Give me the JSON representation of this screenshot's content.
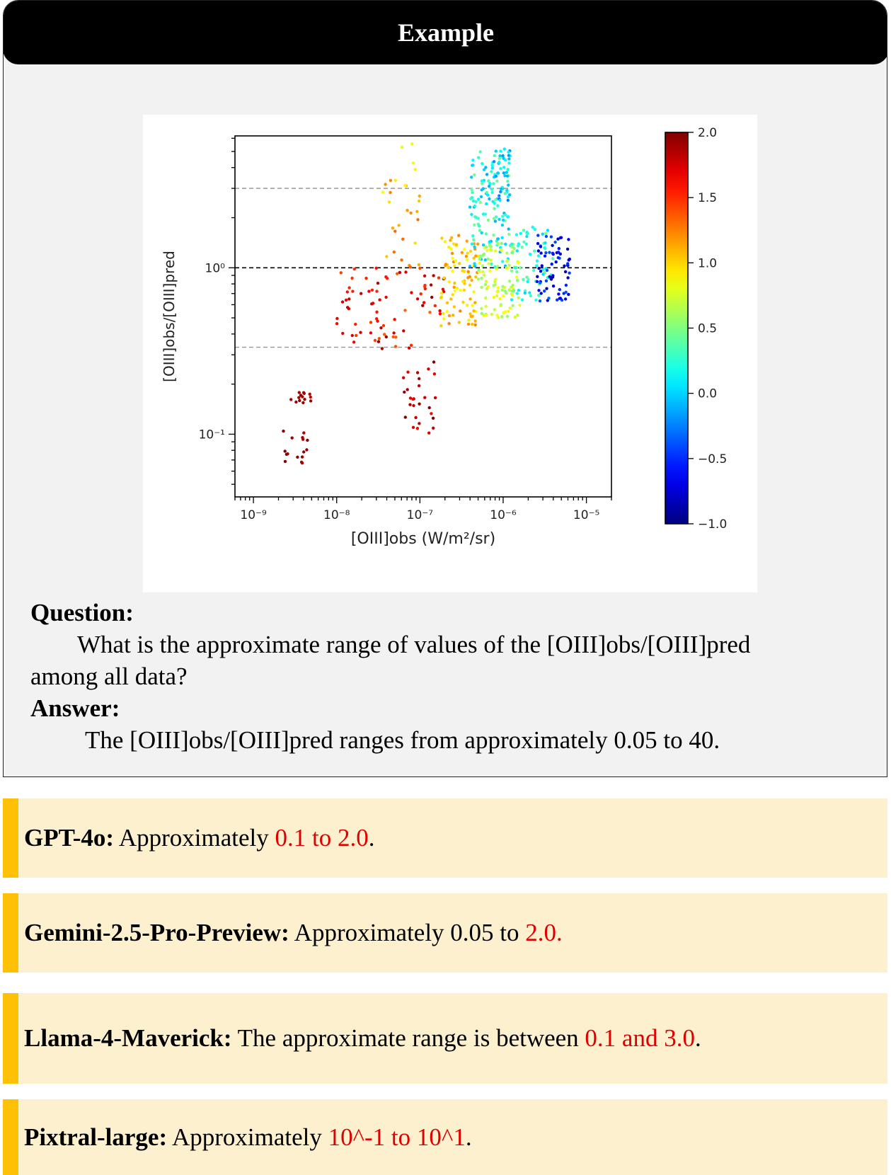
{
  "header": {
    "title": "Example"
  },
  "qa": {
    "question_label": "Question:",
    "question_line1": "What is the approximate range of values of the [OIII]obs/[OIII]pred",
    "question_line2": "among all data?",
    "answer_label": "Answer:",
    "answer_text": "The [OIII]obs/[OIII]pred ranges from approximately 0.05 to 40."
  },
  "responses": [
    {
      "model": "GPT-4o:",
      "before": " Approximately ",
      "wrong": "0.1 to 2.0",
      "after": "."
    },
    {
      "model": "Gemini-2.5-Pro-Preview:",
      "before": " Approximately 0.05 to ",
      "wrong": "2.0.",
      "after": ""
    },
    {
      "model": "Llama-4-Maverick:",
      "before": " The approximate range is between ",
      "wrong": "0.1 and 3.0",
      "after": "."
    },
    {
      "model": "Pixtral-large:",
      "before": " Approximately ",
      "wrong": "10^-1 to 10^1",
      "after": "."
    }
  ],
  "colors": {
    "accent_bar": "#ffc107",
    "response_bg": "#fdf0cf",
    "wrong_text": "#e00000",
    "panel_bg": "#f2f2f2"
  },
  "chart_data": {
    "type": "scatter",
    "xlabel": "[OIII]obs (W/m²/sr)",
    "ylabel": "[OIII]obs/[OIII]pred",
    "x_scale": "log",
    "y_scale": "log",
    "xlim": [
      6e-10,
      2e-05
    ],
    "ylim": [
      0.042,
      6.2
    ],
    "x_ticks": [
      {
        "value": 1e-09,
        "label": "10⁻⁹"
      },
      {
        "value": 1e-08,
        "label": "10⁻⁸"
      },
      {
        "value": 1e-07,
        "label": "10⁻⁷"
      },
      {
        "value": 1e-06,
        "label": "10⁻⁶"
      },
      {
        "value": 1e-05,
        "label": "10⁻⁵"
      }
    ],
    "y_ticks": [
      {
        "value": 1,
        "label": "10⁰"
      },
      {
        "value": 0.1,
        "label": "10⁻¹"
      }
    ],
    "reference_lines": [
      {
        "y": 3.0,
        "style": "dashed",
        "color": "#999999"
      },
      {
        "y": 1.0,
        "style": "dashed",
        "color": "#000000"
      },
      {
        "y": 0.333,
        "style": "dashed",
        "color": "#999999"
      }
    ],
    "colorbar": {
      "colormap": "jet",
      "range": [
        -1.0,
        2.0
      ],
      "ticks": [
        {
          "value": 2.0,
          "label": "2.0"
        },
        {
          "value": 1.5,
          "label": "1.5"
        },
        {
          "value": 1.0,
          "label": "1.0"
        },
        {
          "value": 0.5,
          "label": "0.5"
        },
        {
          "value": 0.0,
          "label": "0.0"
        },
        {
          "value": -0.5,
          "label": "−0.5"
        },
        {
          "value": -1.0,
          "label": "−1.0"
        }
      ]
    },
    "series": [
      {
        "clusters": [
          {
            "x_log": [
              -8.7,
              -8.35
            ],
            "y_log": [
              -1.22,
              -0.95
            ],
            "c": [
              1.85,
              2.0
            ],
            "n": 16
          },
          {
            "x_log": [
              -8.55,
              -8.3
            ],
            "y_log": [
              -0.82,
              -0.72
            ],
            "c": [
              1.8,
              2.0
            ],
            "n": 14
          },
          {
            "x_log": [
              -8.0,
              -7.4
            ],
            "y_log": [
              -0.45,
              0.0
            ],
            "c": [
              1.4,
              1.8
            ],
            "n": 35
          },
          {
            "x_log": [
              -7.5,
              -7.0
            ],
            "y_log": [
              0.0,
              0.55
            ],
            "c": [
              0.95,
              1.35
            ],
            "n": 18
          },
          {
            "x_log": [
              -7.5,
              -6.7
            ],
            "y_log": [
              -0.5,
              0.05
            ],
            "c": [
              1.3,
              1.95
            ],
            "n": 45
          },
          {
            "x_log": [
              -7.2,
              -6.8
            ],
            "y_log": [
              -1.0,
              -0.55
            ],
            "c": [
              1.6,
              2.0
            ],
            "n": 28
          },
          {
            "x_log": [
              -6.75,
              -6.3
            ],
            "y_log": [
              -0.35,
              0.2
            ],
            "c": [
              0.8,
              1.25
            ],
            "n": 90
          },
          {
            "x_log": [
              -6.4,
              -5.9
            ],
            "y_log": [
              0.0,
              0.7
            ],
            "c": [
              -0.1,
              0.5
            ],
            "n": 120
          },
          {
            "x_log": [
              -6.3,
              -5.8
            ],
            "y_log": [
              -0.3,
              0.15
            ],
            "c": [
              0.5,
              0.9
            ],
            "n": 100
          },
          {
            "x_log": [
              -5.9,
              -5.4
            ],
            "y_log": [
              -0.2,
              0.25
            ],
            "c": [
              0.0,
              0.5
            ],
            "n": 60
          },
          {
            "x_log": [
              -5.6,
              -5.2
            ],
            "y_log": [
              -0.2,
              0.2
            ],
            "c": [
              -0.9,
              -0.3
            ],
            "n": 70
          },
          {
            "x_log": [
              -6.2,
              -5.9
            ],
            "y_log": [
              0.4,
              0.72
            ],
            "c": [
              -0.3,
              0.2
            ],
            "n": 35
          },
          {
            "x_log": [
              -7.5,
              -7.0
            ],
            "y_log": [
              0.3,
              0.75
            ],
            "c": [
              0.8,
              1.2
            ],
            "n": 10
          }
        ]
      }
    ]
  }
}
